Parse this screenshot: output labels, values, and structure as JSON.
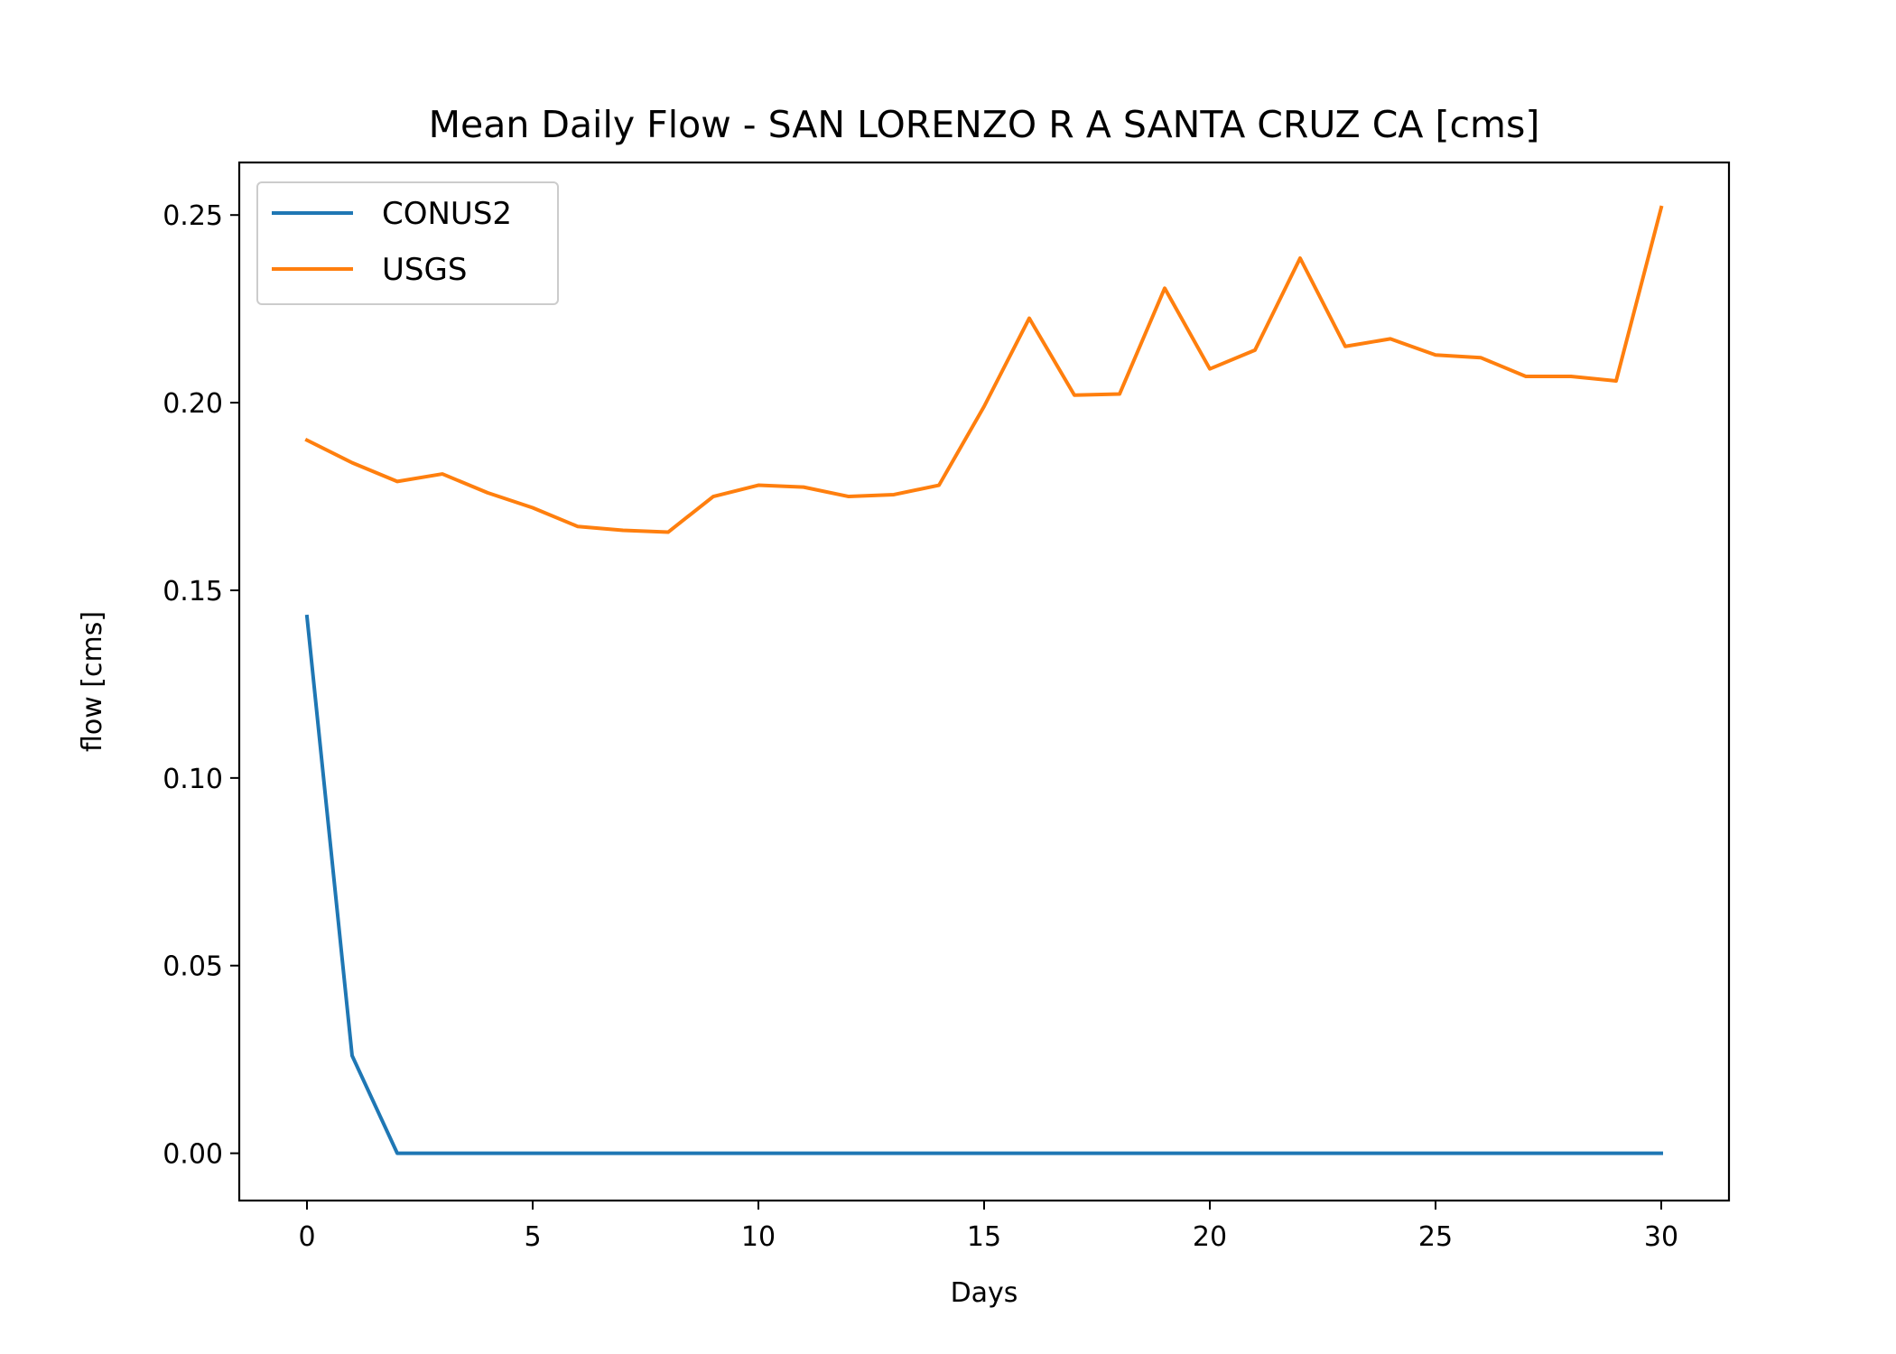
{
  "chart_data": {
    "type": "line",
    "title": "Mean Daily Flow - SAN LORENZO R A SANTA CRUZ CA [cms]",
    "xlabel": "Days",
    "ylabel": "flow [cms]",
    "xlim": [
      -1.5,
      31.5
    ],
    "ylim": [
      -0.0126,
      0.264
    ],
    "xticks": [
      0,
      5,
      10,
      15,
      20,
      25,
      30
    ],
    "yticks": [
      0.0,
      0.05,
      0.1,
      0.15,
      0.2,
      0.25
    ],
    "ytick_labels": [
      "0.00",
      "0.05",
      "0.10",
      "0.15",
      "0.20",
      "0.25"
    ],
    "grid": false,
    "legend_position": "upper left",
    "x": [
      0,
      1,
      2,
      3,
      4,
      5,
      6,
      7,
      8,
      9,
      10,
      11,
      12,
      13,
      14,
      15,
      16,
      17,
      18,
      19,
      20,
      21,
      22,
      23,
      24,
      25,
      26,
      27,
      28,
      29,
      30
    ],
    "series": [
      {
        "name": "CONUS2",
        "color": "#1f77b4",
        "values": [
          0.143,
          0.026,
          0,
          0,
          0,
          0,
          0,
          0,
          0,
          0,
          0,
          0,
          0,
          0,
          0,
          0,
          0,
          0,
          0,
          0,
          0,
          0,
          0,
          0,
          0,
          0,
          0,
          0,
          0,
          0,
          0
        ]
      },
      {
        "name": "USGS",
        "color": "#ff7f0e",
        "values": [
          0.19,
          0.184,
          0.179,
          0.181,
          0.176,
          0.172,
          0.167,
          0.166,
          0.1655,
          0.175,
          0.178,
          0.1775,
          0.175,
          0.1755,
          0.178,
          0.199,
          0.2225,
          0.202,
          0.2023,
          0.2305,
          0.209,
          0.214,
          0.2385,
          0.215,
          0.217,
          0.2127,
          0.212,
          0.207,
          0.207,
          0.2058,
          0.252
        ]
      }
    ]
  }
}
